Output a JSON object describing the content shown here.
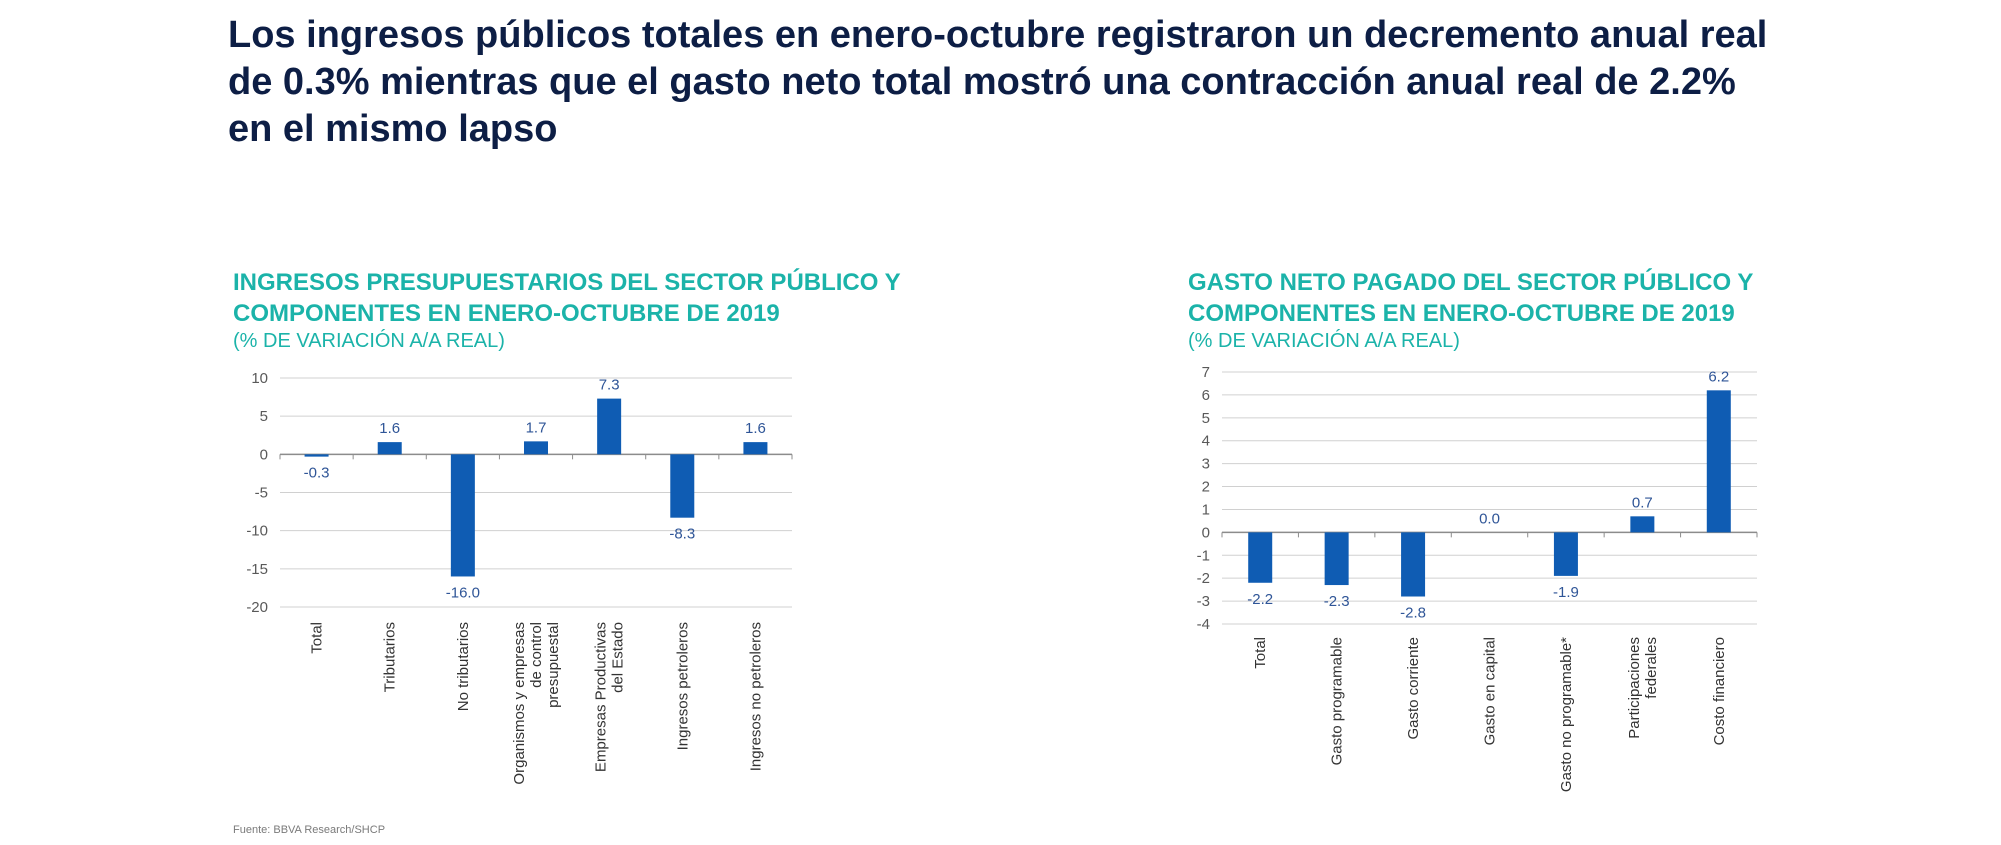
{
  "headline": "Los ingresos públicos totales en enero-octubre registraron un decremento anual real de 0.3% mientras que el gasto neto total mostró una contracción anual real de 2.2% en el mismo lapso",
  "source": "Fuente:  BBVA Research/SHCP",
  "colors": {
    "bar": "#0f5cb3",
    "title": "#1bb3a9",
    "headline": "#0d1e45",
    "grid": "#d0d0d0",
    "tick_text": "#595959",
    "label_text": "#2f5597"
  },
  "chart_data": [
    {
      "type": "bar",
      "title": "INGRESOS PRESUPUESTARIOS DEL SECTOR PÚBLICO Y COMPONENTES EN ENERO-OCTUBRE DE 2019",
      "subtitle": "(% DE VARIACIÓN A/A REAL)",
      "categories": [
        "Total",
        "Tributarios",
        "No tributarios",
        "Organismos y empresas de control presupuestal",
        "Empresas Productivas del Estado",
        "Ingresos petroleros",
        "Ingresos no petroleros"
      ],
      "values": [
        -0.3,
        1.6,
        -16.0,
        1.7,
        7.3,
        -8.3,
        1.6
      ],
      "value_labels": [
        "-0.3",
        "1.6",
        "-16.0",
        "1.7",
        "7.3",
        "-8.3",
        "1.6"
      ],
      "ylim": [
        -20,
        10
      ],
      "yticks": [
        10,
        5,
        0,
        -5,
        -10,
        -15,
        -20
      ],
      "ytick_labels": [
        "10",
        "5",
        "0",
        "-5",
        "-10",
        "-15",
        "-20"
      ],
      "grid": true,
      "xlabel": "",
      "ylabel": ""
    },
    {
      "type": "bar",
      "title": "GASTO NETO PAGADO DEL SECTOR PÚBLICO Y COMPONENTES EN ENERO-OCTUBRE DE 2019",
      "subtitle": "(% DE VARIACIÓN A/A REAL)",
      "categories": [
        "Total",
        "Gasto programable",
        "Gasto corriente",
        "Gasto en capital",
        "Gasto no programable*",
        "Participaciones federales",
        "Costo financiero"
      ],
      "values": [
        -2.2,
        -2.3,
        -2.8,
        0.0,
        -1.9,
        0.7,
        6.2
      ],
      "value_labels": [
        "-2.2",
        "-2.3",
        "-2.8",
        "0.0",
        "-1.9",
        "0.7",
        "6.2"
      ],
      "ylim": [
        -4,
        7
      ],
      "yticks": [
        7,
        6,
        5,
        4,
        3,
        2,
        1,
        0,
        -1,
        -2,
        -3,
        -4
      ],
      "ytick_labels": [
        "7",
        "6",
        "5",
        "4",
        "3",
        "2",
        "1",
        "0",
        "-1",
        "-2",
        "-3",
        "-4"
      ],
      "grid": true,
      "xlabel": "",
      "ylabel": ""
    }
  ]
}
